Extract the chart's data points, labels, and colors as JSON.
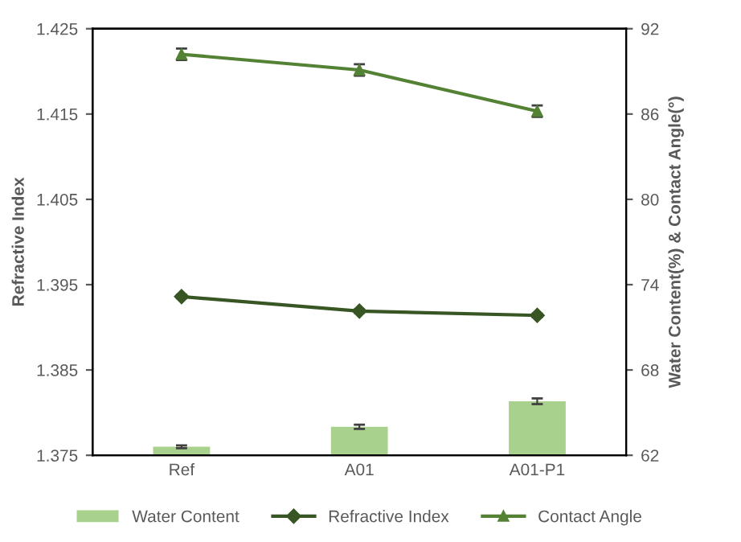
{
  "chart_data": {
    "type": "bar",
    "categories": [
      "Ref",
      "A01",
      "A01-P1"
    ],
    "ylabel": "Refractive Index",
    "y2label": "Water Content(%) & Contact Angle(°)",
    "ylim": [
      1.375,
      1.425
    ],
    "yticks": [
      1.375,
      1.385,
      1.395,
      1.405,
      1.415,
      1.425
    ],
    "y2lim": [
      62,
      92
    ],
    "y2ticks": [
      62,
      68,
      74,
      80,
      86,
      92
    ],
    "grid": false,
    "legend": "bottom",
    "series": [
      {
        "name": "Water Content",
        "axis": "y2",
        "color": "#a9d18e",
        "values": [
          62.6,
          64.0,
          65.8
        ],
        "errors": [
          0.1,
          0.15,
          0.2
        ]
      },
      {
        "name": "Refractive Index",
        "type": "line",
        "axis": "y",
        "color": "#375623",
        "marker": "diamond",
        "values": [
          1.3936,
          1.3919,
          1.3914
        ],
        "errors": [
          0.0002,
          0.0002,
          0.0002
        ]
      },
      {
        "name": "Contact Angle",
        "type": "line",
        "axis": "y2",
        "color": "#548235",
        "marker": "triangle",
        "values": [
          90.2,
          89.1,
          86.2
        ],
        "errors": [
          0.4,
          0.4,
          0.4
        ]
      }
    ]
  }
}
